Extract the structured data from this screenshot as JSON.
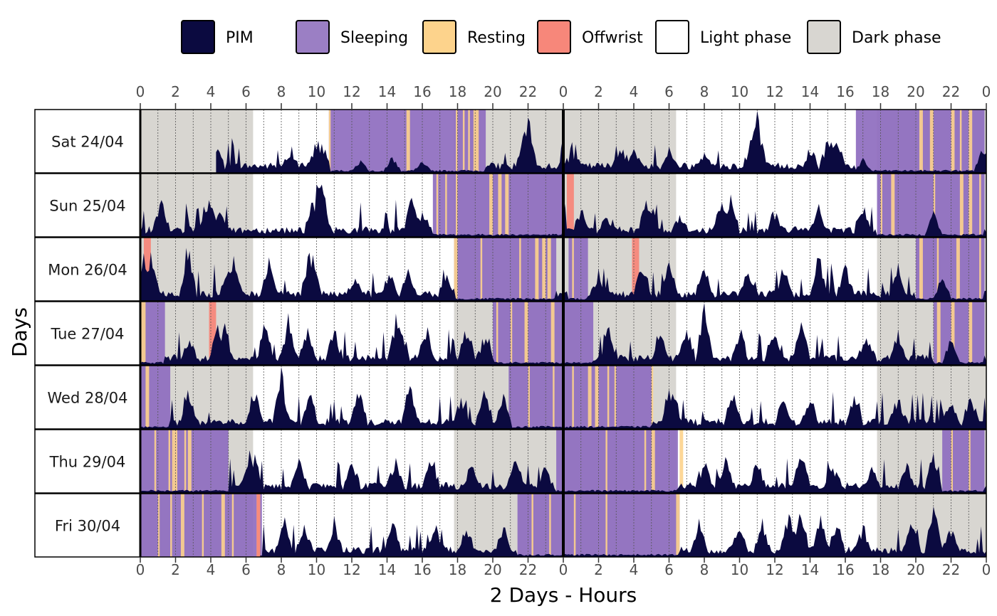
{
  "chart_data": {
    "type": "area",
    "title": "",
    "xlabel": "2 Days - Hours",
    "ylabel": "Days",
    "x_range_hours": [
      0,
      48
    ],
    "x_ticks_hours": [
      0,
      2,
      4,
      6,
      8,
      10,
      12,
      14,
      16,
      18,
      20,
      22,
      24,
      26,
      28,
      30,
      32,
      34,
      36,
      38,
      40,
      42,
      44,
      46,
      48
    ],
    "x_tick_labels": [
      "0",
      "2",
      "4",
      "6",
      "8",
      "10",
      "12",
      "14",
      "16",
      "18",
      "20",
      "22",
      "0",
      "2",
      "4",
      "6",
      "8",
      "10",
      "12",
      "14",
      "16",
      "18",
      "20",
      "22",
      "0"
    ],
    "grid": "vertical dotted lines every hour",
    "legend_position": "top",
    "legend": [
      {
        "name": "PIM",
        "color": "#0b0a40"
      },
      {
        "name": "Sleeping",
        "color": "#9b7fc4"
      },
      {
        "name": "Resting",
        "color": "#fdd38c"
      },
      {
        "name": "Offwrist",
        "color": "#f7877a"
      },
      {
        "name": "Light phase",
        "color": "#ffffff"
      },
      {
        "name": "Dark phase",
        "color": "#d8d6d1"
      }
    ],
    "rows": [
      {
        "day": "Sat 24/04",
        "dark": [
          [
            0,
            6.4
          ],
          [
            17.8,
            30.4
          ],
          [
            41.8,
            48
          ]
        ],
        "sleep": [
          [
            10.7,
            19.6
          ],
          [
            40.6,
            47.9
          ]
        ],
        "rest": [
          [
            10.7,
            10.8
          ],
          [
            15.1,
            15.3
          ],
          [
            17.9,
            18.0
          ],
          [
            18.3,
            18.4
          ],
          [
            18.6,
            18.7
          ],
          [
            18.9,
            19.2
          ],
          [
            44.2,
            44.4
          ],
          [
            44.8,
            45.0
          ],
          [
            46.0,
            46.2
          ],
          [
            46.5,
            46.6
          ],
          [
            47.0,
            47.2
          ]
        ],
        "off": [],
        "pim_from": 4.3,
        "pim_peaks": [
          [
            4.3,
            0.3
          ],
          [
            8.5,
            0.25
          ],
          [
            10.0,
            0.45
          ],
          [
            10.3,
            0.35
          ],
          [
            12.5,
            0.2
          ],
          [
            14.3,
            0.25
          ],
          [
            16.0,
            0.15
          ],
          [
            21.8,
            0.6
          ],
          [
            22.0,
            0.85
          ],
          [
            24.5,
            0.25
          ],
          [
            27.2,
            0.35
          ],
          [
            28.0,
            0.3
          ],
          [
            30.0,
            0.3
          ],
          [
            32.0,
            0.3
          ],
          [
            34.8,
            0.75
          ],
          [
            35.0,
            0.95
          ],
          [
            38.0,
            0.3
          ],
          [
            39.0,
            0.45
          ],
          [
            39.5,
            0.5
          ],
          [
            41.0,
            0.2
          ],
          [
            47.8,
            0.45
          ]
        ]
      },
      {
        "day": "Sun 25/04",
        "dark": [
          [
            0,
            6.4
          ],
          [
            17.8,
            30.4
          ],
          [
            41.8,
            48
          ]
        ],
        "sleep": [
          [
            16.6,
            24.0
          ],
          [
            41.8,
            47.9
          ]
        ],
        "rest": [
          [
            16.8,
            16.9
          ],
          [
            17.3,
            17.4
          ],
          [
            17.9,
            18.0
          ],
          [
            19.8,
            20.0
          ],
          [
            20.3,
            20.5
          ],
          [
            20.7,
            20.9
          ],
          [
            42.0,
            42.1
          ],
          [
            42.6,
            42.8
          ],
          [
            45.0,
            45.1
          ],
          [
            46.5,
            46.7
          ],
          [
            47.0,
            47.2
          ],
          [
            47.6,
            47.7
          ]
        ],
        "off": [
          [
            24.2,
            24.6
          ]
        ],
        "pim_from": 0,
        "pim_peaks": [
          [
            1.2,
            0.5
          ],
          [
            3.8,
            0.55
          ],
          [
            4.0,
            0.5
          ],
          [
            4.6,
            0.3
          ],
          [
            9.8,
            0.5
          ],
          [
            10.1,
            0.95
          ],
          [
            10.3,
            0.85
          ],
          [
            15.4,
            0.55
          ],
          [
            15.6,
            0.35
          ],
          [
            16.0,
            0.3
          ],
          [
            25.0,
            0.4
          ],
          [
            26.5,
            0.3
          ],
          [
            28.7,
            0.45
          ],
          [
            29.0,
            0.5
          ],
          [
            30.6,
            0.25
          ],
          [
            33.0,
            0.6
          ],
          [
            33.5,
            0.6
          ],
          [
            36.0,
            0.35
          ],
          [
            38.5,
            0.45
          ],
          [
            41.0,
            0.45
          ],
          [
            45.0,
            0.45
          ]
        ]
      },
      {
        "day": "Mon 26/04",
        "dark": [
          [
            0,
            6.4
          ],
          [
            17.8,
            30.4
          ],
          [
            41.8,
            48
          ]
        ],
        "sleep": [
          [
            17.8,
            23.6
          ],
          [
            24.3,
            25.4
          ],
          [
            44.0,
            47.9
          ]
        ],
        "rest": [
          [
            17.8,
            18.0
          ],
          [
            19.3,
            19.4
          ],
          [
            21.5,
            21.6
          ],
          [
            22.4,
            22.6
          ],
          [
            22.8,
            23.0
          ],
          [
            23.1,
            23.3
          ],
          [
            24.5,
            24.6
          ],
          [
            44.2,
            44.4
          ],
          [
            45.2,
            45.3
          ],
          [
            46.3,
            46.5
          ],
          [
            47.6,
            47.7
          ]
        ],
        "off": [
          [
            0.2,
            0.6
          ],
          [
            27.9,
            28.3
          ]
        ],
        "pim_from": 0,
        "pim_peaks": [
          [
            0.2,
            0.8
          ],
          [
            0.6,
            0.75
          ],
          [
            2.7,
            0.9
          ],
          [
            5.0,
            0.5
          ],
          [
            5.3,
            0.6
          ],
          [
            7.3,
            0.55
          ],
          [
            9.6,
            0.75
          ],
          [
            9.8,
            0.8
          ],
          [
            12.2,
            0.35
          ],
          [
            14.2,
            0.4
          ],
          [
            15.2,
            0.45
          ],
          [
            17.4,
            0.3
          ],
          [
            26.0,
            0.35
          ],
          [
            28.5,
            0.55
          ],
          [
            30.0,
            0.55
          ],
          [
            32.0,
            0.55
          ],
          [
            34.5,
            0.45
          ],
          [
            36.5,
            0.55
          ],
          [
            38.5,
            0.7
          ],
          [
            40.0,
            0.55
          ],
          [
            43.0,
            0.45
          ],
          [
            45.5,
            0.5
          ]
        ]
      },
      {
        "day": "Tue 27/04",
        "dark": [
          [
            0,
            6.4
          ],
          [
            17.8,
            30.4
          ],
          [
            41.8,
            48
          ]
        ],
        "sleep": [
          [
            0,
            1.4
          ],
          [
            20.0,
            24.0
          ],
          [
            24.0,
            25.7
          ],
          [
            45.0,
            47.9
          ]
        ],
        "rest": [
          [
            0,
            0.3
          ],
          [
            20.2,
            20.3
          ],
          [
            21.0,
            21.1
          ],
          [
            21.8,
            22.0
          ],
          [
            23.3,
            23.5
          ],
          [
            45.2,
            45.4
          ],
          [
            46.0,
            46.2
          ],
          [
            47.0,
            47.2
          ]
        ],
        "off": [
          [
            3.9,
            4.3
          ]
        ],
        "pim_from": 0,
        "pim_peaks": [
          [
            2.8,
            0.35
          ],
          [
            4.4,
            0.6
          ],
          [
            4.8,
            0.65
          ],
          [
            7.1,
            0.65
          ],
          [
            8.4,
            0.7
          ],
          [
            9.5,
            0.5
          ],
          [
            11.0,
            0.55
          ],
          [
            14.5,
            0.75
          ],
          [
            14.8,
            0.55
          ],
          [
            16.2,
            0.6
          ],
          [
            18.5,
            0.6
          ],
          [
            19.6,
            0.45
          ],
          [
            26.6,
            0.6
          ],
          [
            29.5,
            0.5
          ],
          [
            31.0,
            0.55
          ],
          [
            32.0,
            0.95
          ],
          [
            34.0,
            0.5
          ],
          [
            36.0,
            0.55
          ],
          [
            37.5,
            0.7
          ],
          [
            41.2,
            0.5
          ],
          [
            43.0,
            0.45
          ],
          [
            46.0,
            0.5
          ]
        ]
      },
      {
        "day": "Wed 28/04",
        "dark": [
          [
            0,
            6.4
          ],
          [
            17.8,
            30.4
          ],
          [
            41.8,
            48
          ]
        ],
        "sleep": [
          [
            0,
            1.7
          ],
          [
            20.9,
            24.0
          ],
          [
            24.0,
            29.0
          ]
        ],
        "rest": [
          [
            0.3,
            0.5
          ],
          [
            22.0,
            22.1
          ],
          [
            23.4,
            23.5
          ],
          [
            24.5,
            24.6
          ],
          [
            25.4,
            25.6
          ],
          [
            25.8,
            26.0
          ],
          [
            26.5,
            26.6
          ],
          [
            26.9,
            27.0
          ],
          [
            29.0,
            29.1
          ]
        ],
        "off": [],
        "pim_from": 0,
        "pim_peaks": [
          [
            2.7,
            0.6
          ],
          [
            6.5,
            0.6
          ],
          [
            8.0,
            0.95
          ],
          [
            9.6,
            0.6
          ],
          [
            12.4,
            0.6
          ],
          [
            15.3,
            0.7
          ],
          [
            18.2,
            0.45
          ],
          [
            19.5,
            0.55
          ],
          [
            20.6,
            0.55
          ],
          [
            30.0,
            0.65
          ],
          [
            30.3,
            0.5
          ],
          [
            33.6,
            0.55
          ],
          [
            36.5,
            0.45
          ],
          [
            38.0,
            0.5
          ],
          [
            40.5,
            0.45
          ],
          [
            43.0,
            0.5
          ],
          [
            46.0,
            0.35
          ],
          [
            47.1,
            0.5
          ]
        ]
      },
      {
        "day": "Thu 29/04",
        "dark": [
          [
            0,
            6.4
          ],
          [
            17.8,
            30.4
          ],
          [
            41.8,
            48
          ]
        ],
        "sleep": [
          [
            0,
            5.0
          ],
          [
            23.6,
            24.0
          ],
          [
            24.0,
            30.5
          ],
          [
            45.5,
            47.9
          ]
        ],
        "rest": [
          [
            0.8,
            0.9
          ],
          [
            1.6,
            1.7
          ],
          [
            1.8,
            2.1
          ],
          [
            2.5,
            2.6
          ],
          [
            2.7,
            2.9
          ],
          [
            26.4,
            26.5
          ],
          [
            28.6,
            28.7
          ],
          [
            29.0,
            29.2
          ],
          [
            30.6,
            30.8
          ],
          [
            46.0,
            46.1
          ],
          [
            47.0,
            47.1
          ]
        ],
        "off": [],
        "pim_from": 0,
        "pim_peaks": [
          [
            6.2,
            0.6
          ],
          [
            6.5,
            0.55
          ],
          [
            9.0,
            0.45
          ],
          [
            12.0,
            0.45
          ],
          [
            14.5,
            0.5
          ],
          [
            16.5,
            0.45
          ],
          [
            18.8,
            0.45
          ],
          [
            21.3,
            0.5
          ],
          [
            23.0,
            0.4
          ],
          [
            32.0,
            0.45
          ],
          [
            33.2,
            0.55
          ],
          [
            35.0,
            0.5
          ],
          [
            37.5,
            0.65
          ],
          [
            39.3,
            0.45
          ],
          [
            41.5,
            0.35
          ],
          [
            43.5,
            0.45
          ],
          [
            45.0,
            0.65
          ]
        ]
      },
      {
        "day": "Fri 30/04",
        "dark": [
          [
            0,
            6.4
          ],
          [
            17.8,
            30.4
          ],
          [
            41.8,
            48
          ]
        ],
        "sleep": [
          [
            0,
            6.9
          ],
          [
            21.4,
            24.0
          ],
          [
            24.0,
            30.6
          ]
        ],
        "rest": [
          [
            1.0,
            1.1
          ],
          [
            1.7,
            1.8
          ],
          [
            2.3,
            2.5
          ],
          [
            3.5,
            3.6
          ],
          [
            4.6,
            4.8
          ],
          [
            5.2,
            5.3
          ],
          [
            6.6,
            6.8
          ],
          [
            22.2,
            22.3
          ],
          [
            23.2,
            23.3
          ],
          [
            24.6,
            24.7
          ],
          [
            26.4,
            26.5
          ],
          [
            30.4,
            30.6
          ]
        ],
        "off": [
          [
            6.6,
            6.8
          ]
        ],
        "pim_from": 6.8,
        "pim_peaks": [
          [
            8.2,
            0.55
          ],
          [
            9.3,
            0.45
          ],
          [
            11.0,
            0.5
          ],
          [
            14.3,
            0.5
          ],
          [
            16.8,
            0.4
          ],
          [
            18.5,
            0.4
          ],
          [
            20.6,
            0.45
          ],
          [
            31.7,
            0.5
          ],
          [
            34.0,
            0.55
          ],
          [
            35.3,
            0.55
          ],
          [
            36.8,
            0.65
          ],
          [
            37.5,
            0.7
          ],
          [
            38.6,
            0.55
          ],
          [
            39.5,
            0.5
          ],
          [
            41.0,
            0.45
          ],
          [
            43.8,
            0.6
          ],
          [
            45.0,
            0.85
          ],
          [
            46.0,
            0.45
          ]
        ]
      }
    ]
  }
}
